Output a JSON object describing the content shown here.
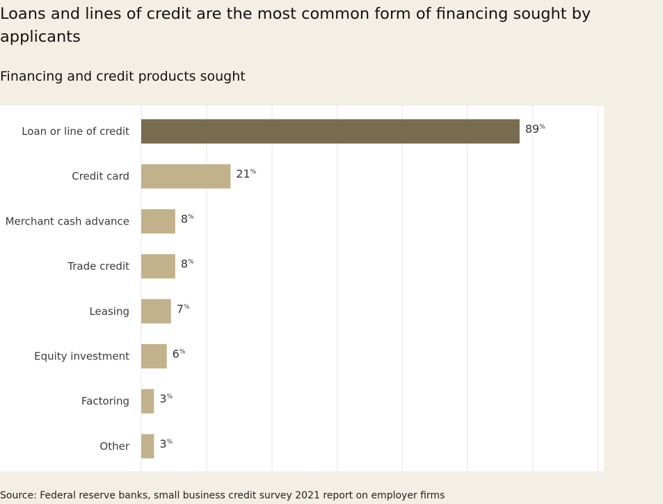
{
  "title": "Loans and lines of credit are the most common form of financing sought by applicants",
  "subtitle": "Financing and credit products sought",
  "source": "Source: Federal reserve banks, small business credit survey 2021 report on employer firms",
  "colors": {
    "background": "#f3efe4",
    "panel": "#ffffff",
    "highlight_bar": "#786b4f",
    "bar": "#c2b28c",
    "grid": "#e6e6e6"
  },
  "chart_data": {
    "type": "bar",
    "orientation": "horizontal",
    "categories": [
      "Loan or line of credit",
      "Credit card",
      "Merchant cash advance",
      "Trade credit",
      "Leasing",
      "Equity investment",
      "Factoring",
      "Other"
    ],
    "values": [
      89,
      21,
      8,
      8,
      7,
      6,
      3,
      3
    ],
    "value_unit": "%",
    "highlight_index": 0,
    "xlim": [
      0,
      100
    ],
    "grid": true,
    "title": "Financing and credit products sought",
    "xlabel": "",
    "ylabel": ""
  }
}
